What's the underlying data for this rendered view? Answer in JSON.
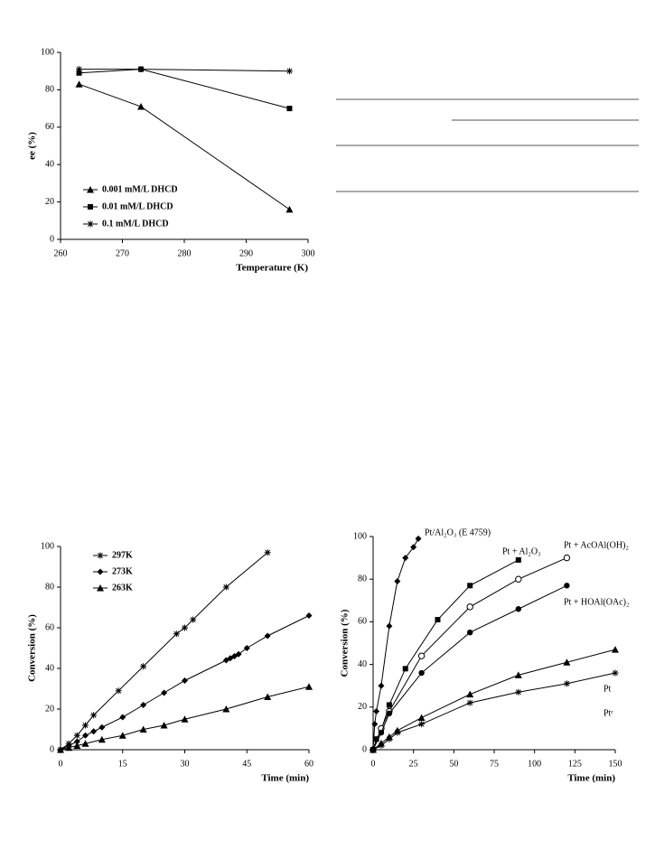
{
  "chart_data": [
    {
      "type": "line",
      "x_label": "Temperature (K)",
      "y_label": "ee (%)",
      "xlim": [
        260,
        300
      ],
      "ylim": [
        0,
        100
      ],
      "xticks": [
        260,
        270,
        280,
        290,
        300
      ],
      "yticks": [
        0,
        20,
        40,
        60,
        80,
        100
      ],
      "legend": "lower left",
      "series": [
        {
          "name": "0.001 mM/L DHCD",
          "color": "#000000",
          "marker": "triangle",
          "x": [
            263,
            273,
            297
          ],
          "values": [
            83,
            71,
            16
          ]
        },
        {
          "name": "0.01 mM/L DHCD",
          "color": "#000000",
          "marker": "square",
          "x": [
            263,
            273,
            297
          ],
          "values": [
            89,
            91,
            70
          ]
        },
        {
          "name": "0.1 mM/L DHCD",
          "color": "#000000",
          "marker": "star",
          "x": [
            263,
            273,
            297
          ],
          "values": [
            91,
            91,
            90
          ]
        }
      ]
    },
    {
      "type": "line",
      "x_label": "Time (min)",
      "y_label": "Conversion (%)",
      "xlim": [
        0,
        60
      ],
      "ylim": [
        0,
        100
      ],
      "xticks": [
        0,
        15,
        30,
        45,
        60
      ],
      "yticks": [
        0,
        20,
        40,
        60,
        80,
        100
      ],
      "legend": "upper left",
      "series": [
        {
          "name": "297K",
          "color": "#000000",
          "marker": "star",
          "x": [
            0,
            2,
            4,
            6,
            8,
            14,
            20,
            28,
            30,
            32,
            40,
            50
          ],
          "values": [
            0,
            3,
            7,
            12,
            17,
            29,
            41,
            57,
            60,
            64,
            80,
            97
          ]
        },
        {
          "name": "273K",
          "color": "#000000",
          "marker": "diamond",
          "x": [
            0,
            2,
            4,
            6,
            8,
            10,
            15,
            20,
            25,
            30,
            40,
            41,
            42,
            43,
            45,
            50,
            60
          ],
          "values": [
            0,
            2,
            4,
            7,
            9,
            11,
            16,
            22,
            28,
            34,
            44,
            45,
            46,
            47,
            50,
            56,
            66
          ]
        },
        {
          "name": "263K",
          "color": "#000000",
          "marker": "triangle",
          "x": [
            0,
            2,
            4,
            6,
            10,
            15,
            20,
            25,
            30,
            40,
            50,
            60
          ],
          "values": [
            0,
            1,
            2,
            3,
            5,
            7,
            10,
            12,
            15,
            20,
            26,
            31
          ]
        }
      ]
    },
    {
      "type": "line",
      "x_label": "Time (min)",
      "y_label": "Conversion (%)",
      "xlim": [
        0,
        150
      ],
      "ylim": [
        0,
        100
      ],
      "xticks": [
        0,
        25,
        50,
        75,
        100,
        125,
        150
      ],
      "yticks": [
        0,
        20,
        40,
        60,
        80,
        100
      ],
      "legend": "inline",
      "series": [
        {
          "name": "Pt/Al₂O₃ (E 4759)",
          "color": "#000000",
          "marker": "diamond",
          "x": [
            0,
            1,
            2,
            5,
            10,
            15,
            20,
            25,
            28
          ],
          "values": [
            0,
            12,
            18,
            30,
            58,
            79,
            90,
            95,
            99
          ]
        },
        {
          "name": "Pt + Al₂O₃",
          "color": "#000000",
          "marker": "square",
          "x": [
            0,
            2,
            5,
            10,
            20,
            40,
            60,
            90
          ],
          "values": [
            0,
            5,
            9,
            21,
            38,
            61,
            77,
            89
          ]
        },
        {
          "name": "Pt + AcOAl(OH)₂",
          "color": "#000000",
          "marker": "open-circle",
          "x": [
            0,
            5,
            10,
            30,
            60,
            90,
            120
          ],
          "values": [
            0,
            10,
            18,
            44,
            67,
            80,
            90
          ]
        },
        {
          "name": "Pt + HOAl(OAc)₂",
          "color": "#000000",
          "marker": "circle",
          "x": [
            0,
            5,
            10,
            30,
            60,
            90,
            120
          ],
          "values": [
            0,
            8,
            17,
            36,
            55,
            66,
            77
          ]
        },
        {
          "name": "Pt",
          "color": "#000000",
          "marker": "triangle",
          "x": [
            0,
            5,
            10,
            15,
            30,
            60,
            90,
            120,
            150
          ],
          "values": [
            0,
            3,
            6,
            9,
            15,
            26,
            35,
            41,
            47
          ]
        },
        {
          "name": "Ptᶜ",
          "color": "#000000",
          "marker": "star",
          "x": [
            0,
            5,
            10,
            15,
            30,
            60,
            90,
            120,
            150
          ],
          "values": [
            0,
            2,
            5,
            8,
            12,
            22,
            27,
            31,
            36
          ]
        }
      ]
    }
  ]
}
